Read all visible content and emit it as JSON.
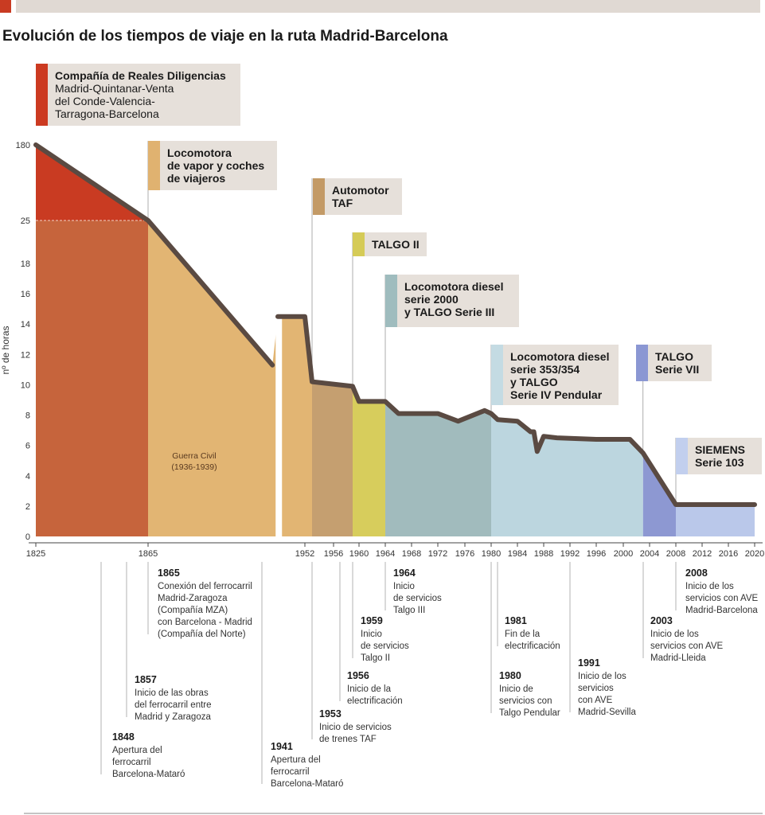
{
  "title": "Evolución de los tiempos de viaje en la ruta Madrid-Barcelona",
  "colors": {
    "accent_bar": "#c93b22",
    "top_band": "#e0d9d3",
    "line": "#5a4a42",
    "label_box": "#e6e0da"
  },
  "chart_data": {
    "type": "area",
    "ylabel": "nº de horas",
    "yticks": [
      "0",
      "2",
      "4",
      "6",
      "8",
      "10",
      "12",
      "14",
      "16",
      "18",
      "25",
      "180"
    ],
    "xticks": [
      "1825",
      "1865",
      "1952",
      "1956",
      "1960",
      "1964",
      "1968",
      "1972",
      "1976",
      "1980",
      "1984",
      "1988",
      "1992",
      "1996",
      "2000",
      "2004",
      "2008",
      "2012",
      "2016",
      "2020"
    ],
    "series": [
      {
        "x": [
          1825,
          1865,
          1934,
          1937,
          1952,
          1953,
          1959,
          1960,
          1963,
          1964,
          1966,
          1972,
          1975,
          1979,
          1980,
          1981,
          1984,
          1986,
          1986.5,
          1987,
          1988,
          1990,
          1996,
          2001,
          2003,
          2008,
          2020
        ],
        "y": [
          180,
          25,
          11.3,
          14.5,
          14.5,
          10.2,
          9.9,
          8.9,
          8.9,
          8.9,
          8.1,
          8.1,
          7.6,
          8.3,
          8.1,
          7.7,
          7.6,
          6.9,
          6.9,
          5.6,
          6.6,
          6.5,
          6.4,
          6.4,
          5.5,
          2.1,
          2.1
        ]
      }
    ],
    "eras": [
      {
        "id": "diligencias",
        "from": 1825,
        "to": 1865,
        "color": "#c6643c",
        "title": "Compañía de Reales Diligencias",
        "lines": [
          "Madrid-Quintanar-Venta",
          "del Conde-Valencia-",
          "Tarragona-Barcelona"
        ],
        "box_color": "#cc3a21"
      },
      {
        "id": "vapor",
        "from": 1865,
        "to": 1953,
        "color": "#e2b573",
        "title": "",
        "lines": [
          "Locomotora",
          "de vapor y coches",
          "de viajeros"
        ],
        "box_color": "#e0b270"
      },
      {
        "id": "taf",
        "from": 1953,
        "to": 1959,
        "color": "#c59f70",
        "title": "",
        "lines": [
          "Automotor",
          "TAF"
        ],
        "box_color": "#c39a66"
      },
      {
        "id": "talgo2",
        "from": 1959,
        "to": 1964,
        "color": "#d7cd5c",
        "title": "",
        "lines": [
          "TALGO II"
        ],
        "box_color": "#d5cb57"
      },
      {
        "id": "diesel2000",
        "from": 1964,
        "to": 1980,
        "color": "#a1bbbd",
        "title": "",
        "lines": [
          "Locomotora diesel",
          "serie 2000",
          "y TALGO Serie III"
        ],
        "box_color": "#9fbcbe"
      },
      {
        "id": "diesel353",
        "from": 1980,
        "to": 2003,
        "color": "#bcd6df",
        "title": "",
        "lines": [
          "Locomotora diesel",
          "serie 353/354",
          "y TALGO",
          "Serie IV Pendular"
        ],
        "box_color": "#c4dbe3"
      },
      {
        "id": "talgo7",
        "from": 2003,
        "to": 2008,
        "color": "#8d98d2",
        "title": "",
        "lines": [
          "TALGO",
          "Serie VII"
        ],
        "box_color": "#8b97d3"
      },
      {
        "id": "siemens",
        "from": 2008,
        "to": 2020,
        "color": "#bac8ea",
        "title": "",
        "lines": [
          "SIEMENS",
          "Serie 103"
        ],
        "box_color": "#c2cfee"
      }
    ],
    "annotation": [
      "Guerra Civil",
      "(1936-1939)"
    ],
    "events": [
      {
        "year": "1865",
        "lines": [
          "Conexión del ferrocarril",
          "Madrid-Zaragoza",
          "(Compañía MZA)",
          "con Barcelona - Madrid",
          "(Compañía del Norte)"
        ]
      },
      {
        "year": "1857",
        "lines": [
          "Inicio de las obras",
          "del ferrocarril entre",
          "Madrid y Zaragoza"
        ]
      },
      {
        "year": "1848",
        "lines": [
          "Apertura del",
          "ferrocarril",
          "Barcelona-Mataró"
        ]
      },
      {
        "year": "1941",
        "lines": [
          "Apertura del",
          "ferrocarril",
          "Barcelona-Mataró"
        ]
      },
      {
        "year": "1953",
        "lines": [
          "Inicio de servicios",
          "de trenes TAF"
        ]
      },
      {
        "year": "1956",
        "lines": [
          "Inicio de la",
          "electrificación"
        ]
      },
      {
        "year": "1959",
        "lines": [
          "Inicio",
          "de servicios",
          "Talgo II"
        ]
      },
      {
        "year": "1964",
        "lines": [
          "Inicio",
          "de servicios",
          "Talgo III"
        ]
      },
      {
        "year": "1981",
        "lines": [
          "Fin de la",
          "electrificación"
        ]
      },
      {
        "year": "1980",
        "lines": [
          "Inicio de",
          "servicios con",
          "Talgo Pendular"
        ]
      },
      {
        "year": "1991",
        "lines": [
          "Inicio de los",
          "servicios",
          "con AVE",
          "Madrid-Sevilla"
        ]
      },
      {
        "year": "2003",
        "lines": [
          "Inicio de los",
          "servicios con AVE",
          "Madrid-Lleida"
        ]
      },
      {
        "year": "2008",
        "lines": [
          "Inicio de los",
          "servicios con AVE",
          "Madrid-Barcelona"
        ]
      }
    ]
  }
}
